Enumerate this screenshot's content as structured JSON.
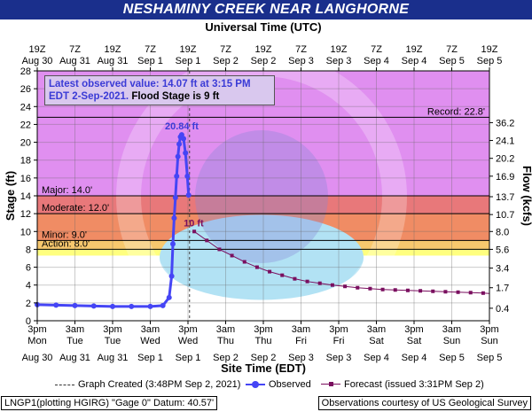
{
  "title": "NESHAMINY CREEK NEAR LANGHORNE",
  "top_axis_title": "Universal Time (UTC)",
  "top_tick_labels": [
    [
      "19Z",
      "Aug 30"
    ],
    [
      "7Z",
      "Aug 31"
    ],
    [
      "19Z",
      "Aug 31"
    ],
    [
      "7Z",
      "Sep 1"
    ],
    [
      "19Z",
      "Sep 1"
    ],
    [
      "7Z",
      "Sep 2"
    ],
    [
      "19Z",
      "Sep 2"
    ],
    [
      "7Z",
      "Sep 3"
    ],
    [
      "19Z",
      "Sep 3"
    ],
    [
      "7Z",
      "Sep 4"
    ],
    [
      "19Z",
      "Sep 4"
    ],
    [
      "7Z",
      "Sep 5"
    ],
    [
      "19Z",
      "Sep 5"
    ]
  ],
  "bottom_tick_labels": [
    [
      "3pm",
      "Mon"
    ],
    [
      "3am",
      "Tue"
    ],
    [
      "3pm",
      "Tue"
    ],
    [
      "3am",
      "Wed"
    ],
    [
      "3pm",
      "Wed"
    ],
    [
      "3am",
      "Thu"
    ],
    [
      "3pm",
      "Thu"
    ],
    [
      "3am",
      "Fri"
    ],
    [
      "3pm",
      "Fri"
    ],
    [
      "3am",
      "Sat"
    ],
    [
      "3pm",
      "Sat"
    ],
    [
      "3am",
      "Sun"
    ],
    [
      "3pm",
      "Sun"
    ]
  ],
  "bottom_date_labels": [
    "Aug 30",
    "Aug 31",
    "Aug 31",
    "Sep 1",
    "Sep 1",
    "Sep 2",
    "Sep 2",
    "Sep 3",
    "Sep 3",
    "Sep 4",
    "Sep 4",
    "Sep 5",
    "Sep 5"
  ],
  "x_axis_title": "Site Time (EDT)",
  "y_axis_title": "Stage (ft)",
  "y2_axis_title": "Flow (kcfs)",
  "info_box": {
    "line1": "Latest observed value: 14.07 ft at 3:15 PM",
    "line2a": "EDT 2-Sep-2021.",
    "line2b": " Flood Stage is 9 ft"
  },
  "legend": {
    "graph_created": "Graph Created (3:48PM Sep 2, 2021)",
    "observed": "Observed",
    "forecast": "Forecast (issued 3:31PM Sep 2)"
  },
  "footer_left": "LNGP1(plotting HGIRG) \"Gage 0\" Datum: 40.57'",
  "footer_right": "Observations courtesy of US Geological Survey",
  "chart_data": {
    "type": "line",
    "x_unit": "hours since 3pm Mon Aug 30",
    "x_range": [
      0,
      144
    ],
    "ylim": [
      0,
      28
    ],
    "y_ticks": [
      0,
      2,
      4,
      6,
      8,
      10,
      12,
      14,
      16,
      18,
      20,
      22,
      24,
      26,
      28
    ],
    "y2_ticks": [
      {
        "stage": 1.4,
        "label": "0.4"
      },
      {
        "stage": 3.7,
        "label": "1.7"
      },
      {
        "stage": 5.9,
        "label": "3.4"
      },
      {
        "stage": 8.0,
        "label": "5.6"
      },
      {
        "stage": 10.0,
        "label": "8.0"
      },
      {
        "stage": 11.9,
        "label": "10.7"
      },
      {
        "stage": 13.9,
        "label": "13.7"
      },
      {
        "stage": 16.2,
        "label": "16.9"
      },
      {
        "stage": 18.2,
        "label": "20.2"
      },
      {
        "stage": 20.2,
        "label": "24.1"
      },
      {
        "stage": 22.2,
        "label": "36.2"
      }
    ],
    "categories": [
      "record",
      "major",
      "moderate",
      "minor",
      "action"
    ],
    "thresholds": {
      "action": 8.0,
      "minor": 9.0,
      "moderate": 12.0,
      "major": 14.0,
      "record": 22.8
    },
    "threshold_labels": {
      "record": "Record: 22.8'",
      "major": "Major: 14.0'",
      "moderate": "Moderate: 12.0'",
      "minor": "Minor: 9.0'",
      "action": "Action: 8.0'"
    },
    "colors": {
      "record_zone": "#e08ff0",
      "major_zone": "#e8787a",
      "moderate_zone": "#f08c64",
      "minor_zone": "#f7c86e",
      "action_zone": "#ffff7f",
      "normal_zone": "#b2e2f4",
      "observed": "#4545f5",
      "forecast": "#7a0f5f"
    },
    "graph_created_x": 48.5,
    "peak_label": "20.84 ft",
    "forecast_start_label": "10 ft",
    "series": [
      {
        "name": "Observed",
        "x": [
          0,
          6,
          12,
          18,
          24,
          30,
          36,
          40,
          42,
          42.8,
          43.2,
          43.6,
          44.0,
          44.4,
          44.8,
          45.2,
          45.6,
          46.0,
          46.6,
          47.2,
          47.8,
          48.2
        ],
        "y": [
          1.8,
          1.75,
          1.7,
          1.65,
          1.6,
          1.6,
          1.6,
          1.7,
          2.6,
          5.0,
          8.6,
          11.5,
          13.8,
          16.2,
          18.4,
          19.8,
          20.6,
          20.84,
          20.4,
          18.8,
          16.2,
          14.07
        ]
      },
      {
        "name": "Forecast",
        "x": [
          50,
          54,
          58,
          62,
          66,
          70,
          74,
          78,
          82,
          86,
          90,
          94,
          98,
          102,
          106,
          110,
          114,
          118,
          122,
          126,
          130,
          134,
          138,
          142,
          146
        ],
        "y": [
          10.0,
          9.0,
          8.0,
          7.3,
          6.6,
          6.0,
          5.5,
          5.1,
          4.7,
          4.4,
          4.2,
          4.0,
          3.85,
          3.7,
          3.6,
          3.5,
          3.45,
          3.4,
          3.35,
          3.3,
          3.25,
          3.2,
          3.15,
          3.1,
          3.05
        ]
      }
    ]
  }
}
